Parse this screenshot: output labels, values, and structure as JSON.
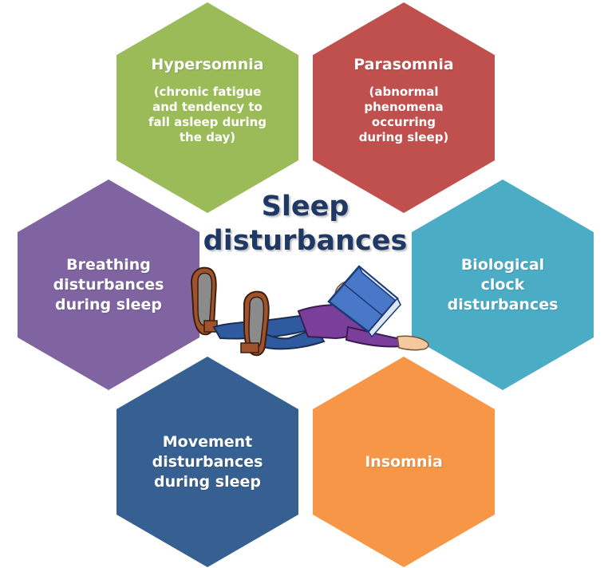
{
  "center": {
    "title": "Sleep\ndisturbances"
  },
  "hexagons": {
    "hypersomnia": {
      "title": "Hypersomnia",
      "subtitle": "(chronic fatigue\nand tendency to\nfall asleep during\nthe day)",
      "color": "#9bbb59"
    },
    "parasomnia": {
      "title": "Parasomnia",
      "subtitle": "(abnormal\nphenomena\noccurring\nduring sleep)",
      "color": "#c0504d"
    },
    "breathing": {
      "title": "Breathing\ndisturbances\nduring sleep",
      "color": "#8064a2"
    },
    "clock": {
      "title": "Biological\nclock\ndisturbances",
      "color": "#4bacc6"
    },
    "movement": {
      "title": "Movement\ndisturbances\nduring sleep",
      "color": "#376092"
    },
    "insomnia": {
      "title": "Insomnia",
      "color": "#f79646"
    }
  },
  "illustration": {
    "icon": "sleeping-man-with-book-illustration"
  }
}
